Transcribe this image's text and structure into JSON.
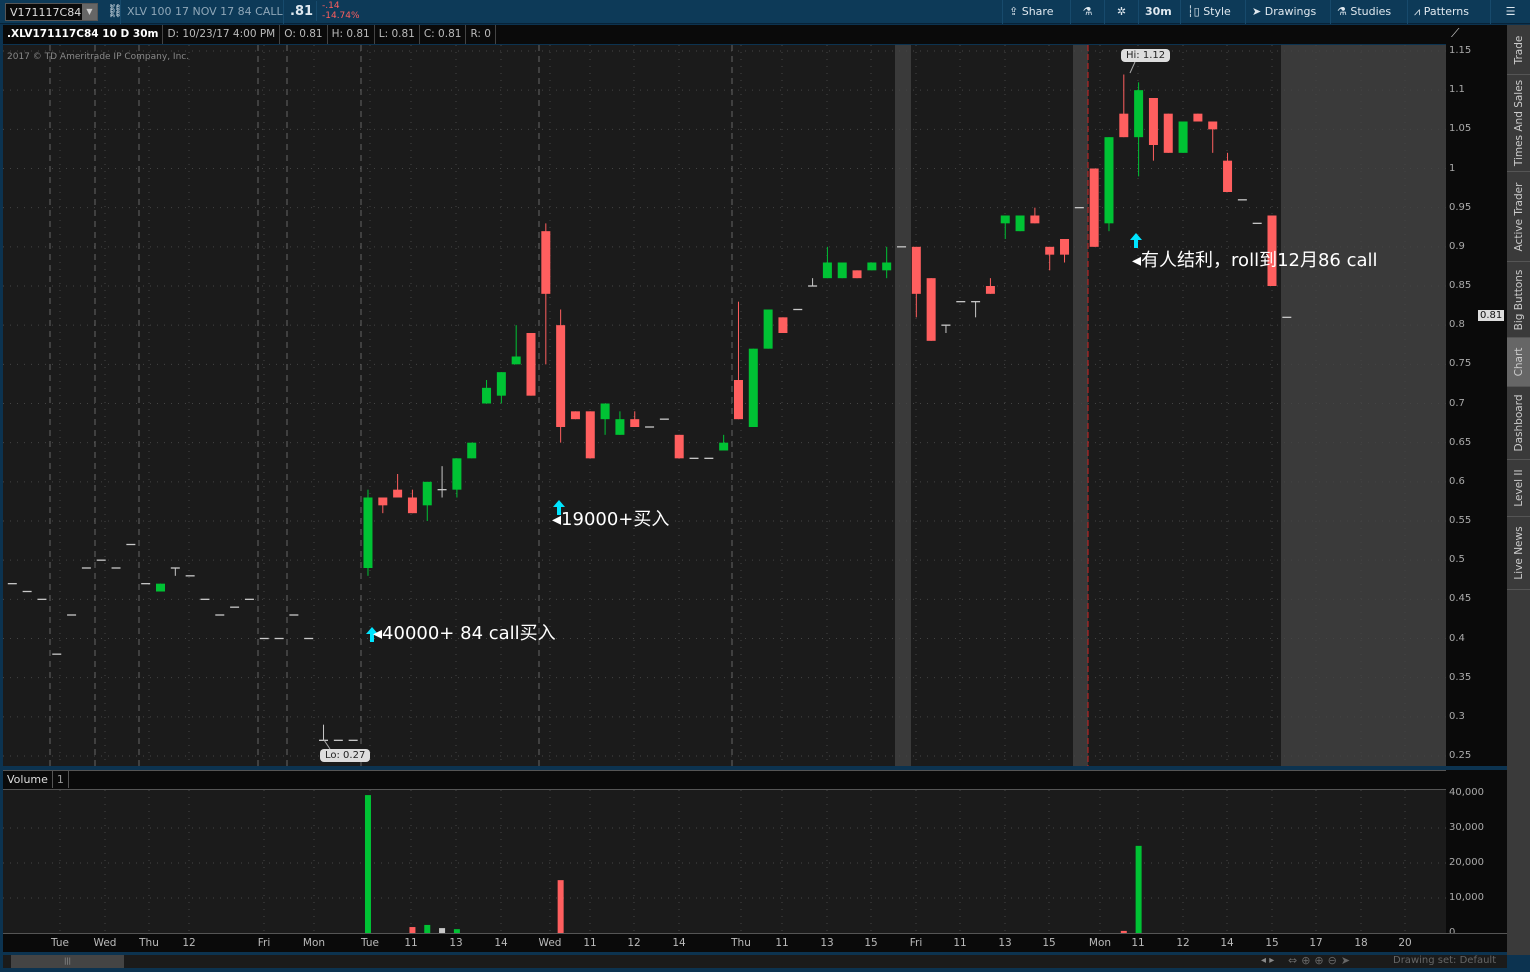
{
  "toolbar": {
    "symbol": "V171117C84",
    "description": "XLV 100 17 NOV 17 84 CALL",
    "last": ".81",
    "change": "-.14",
    "change_pct": "-14.74%",
    "share": "Share",
    "timeframe": "30m",
    "style": "Style",
    "drawings": "Drawings",
    "studies": "Studies",
    "patterns": "Patterns",
    "icons": [
      "link-icon",
      "share-icon",
      "flask-icon",
      "gear-icon",
      "candle-style-icon",
      "cursor-icon",
      "studies-flask-icon",
      "patterns-icon",
      "menu-icon"
    ]
  },
  "infobar": {
    "title": ".XLV171117C84 10 D 30m",
    "date": "D: 10/23/17 4:00 PM",
    "open": "O: 0.81",
    "high": "H: 0.81",
    "low": "L: 0.81",
    "close": "C: 0.81",
    "range": "R: 0"
  },
  "copyright": "2017 © TD Ameritrade IP Company, Inc.",
  "annotations": {
    "a1": "40000+ 84 call买入",
    "a2": "19000+买入",
    "a3": "有人结利，roll到12月86 call",
    "hi": "Hi: 1.12",
    "lo": "Lo: 0.27",
    "current": "0.81"
  },
  "volume": {
    "label": "Volume",
    "index": "1"
  },
  "sidebar": [
    "Trade",
    "Times And Sales",
    "Active Trader",
    "Big Buttons",
    "Chart",
    "Dashboard",
    "Level II",
    "Live News"
  ],
  "sidebar_active": "Chart",
  "statusbar": {
    "drawing_set": "Drawing set: Default"
  },
  "colors": {
    "up": "#00c234",
    "down": "#ff5f5f",
    "neutral": "#c8c8c8",
    "arrow": "#00e5ff",
    "background": "#1b1b1b"
  },
  "chart_data": {
    "type": "candlestick",
    "interval": "30m",
    "price_ticks": [
      "1.15",
      "1.1",
      "1.05",
      "1",
      "0.95",
      "0.9",
      "0.85",
      "0.8",
      "0.75",
      "0.7",
      "0.65",
      "0.6",
      "0.55",
      "0.5",
      "0.45",
      "0.4",
      "0.35",
      "0.3",
      "0.25"
    ],
    "ylim": [
      0.25,
      1.15
    ],
    "volume_ticks": [
      "40,000",
      "30,000",
      "20,000",
      "10,000",
      "0"
    ],
    "volume_ylim": [
      0,
      40000
    ],
    "time_labels": [
      "Tue",
      "Wed",
      "Thu",
      "12",
      "Fri",
      "Mon",
      "Tue",
      "11",
      "13",
      "14",
      "Wed",
      "11",
      "12",
      "14",
      "Thu",
      "11",
      "13",
      "15",
      "Fri",
      "11",
      "13",
      "15",
      "Mon",
      "11",
      "12",
      "14",
      "15",
      "17",
      "18",
      "20"
    ],
    "ohlc": [
      [
        0.47,
        0.47,
        0.47,
        0.47
      ],
      [
        0.46,
        0.46,
        0.46,
        0.46
      ],
      [
        0.45,
        0.45,
        0.45,
        0.45
      ],
      [
        0.38,
        0.38,
        0.38,
        0.38
      ],
      [
        0.43,
        0.43,
        0.43,
        0.43
      ],
      [
        0.49,
        0.49,
        0.49,
        0.49
      ],
      [
        0.5,
        0.5,
        0.5,
        0.5
      ],
      [
        0.49,
        0.49,
        0.49,
        0.49
      ],
      [
        0.52,
        0.52,
        0.52,
        0.52
      ],
      [
        0.47,
        0.47,
        0.47,
        0.47
      ],
      [
        0.46,
        0.47,
        0.46,
        0.47
      ],
      [
        0.49,
        0.49,
        0.48,
        0.49
      ],
      [
        0.48,
        0.48,
        0.48,
        0.48
      ],
      [
        0.45,
        0.45,
        0.45,
        0.45
      ],
      [
        0.43,
        0.43,
        0.43,
        0.43
      ],
      [
        0.44,
        0.44,
        0.44,
        0.44
      ],
      [
        0.45,
        0.45,
        0.45,
        0.45
      ],
      [
        0.4,
        0.4,
        0.4,
        0.4
      ],
      [
        0.4,
        0.4,
        0.4,
        0.4
      ],
      [
        0.43,
        0.43,
        0.43,
        0.43
      ],
      [
        0.4,
        0.4,
        0.4,
        0.4
      ],
      [
        0.27,
        0.29,
        0.27,
        0.27
      ],
      [
        0.27,
        0.27,
        0.27,
        0.27
      ],
      [
        0.27,
        0.27,
        0.27,
        0.27
      ],
      [
        0.49,
        0.59,
        0.48,
        0.58
      ],
      [
        0.58,
        0.58,
        0.56,
        0.57
      ],
      [
        0.59,
        0.61,
        0.58,
        0.58
      ],
      [
        0.58,
        0.59,
        0.56,
        0.56
      ],
      [
        0.57,
        0.6,
        0.55,
        0.6
      ],
      [
        0.59,
        0.62,
        0.58,
        0.59
      ],
      [
        0.59,
        0.63,
        0.58,
        0.63
      ],
      [
        0.63,
        0.65,
        0.63,
        0.65
      ],
      [
        0.7,
        0.73,
        0.7,
        0.72
      ],
      [
        0.71,
        0.74,
        0.7,
        0.74
      ],
      [
        0.75,
        0.8,
        0.75,
        0.76
      ],
      [
        0.79,
        0.79,
        0.71,
        0.71
      ],
      [
        0.92,
        0.93,
        0.75,
        0.84
      ],
      [
        0.8,
        0.82,
        0.65,
        0.67
      ],
      [
        0.69,
        0.69,
        0.68,
        0.68
      ],
      [
        0.69,
        0.69,
        0.63,
        0.63
      ],
      [
        0.68,
        0.7,
        0.66,
        0.7
      ],
      [
        0.66,
        0.69,
        0.66,
        0.68
      ],
      [
        0.68,
        0.69,
        0.67,
        0.67
      ],
      [
        0.67,
        0.67,
        0.67,
        0.67
      ],
      [
        0.68,
        0.68,
        0.68,
        0.68
      ],
      [
        0.66,
        0.66,
        0.63,
        0.63
      ],
      [
        0.63,
        0.63,
        0.63,
        0.63
      ],
      [
        0.63,
        0.63,
        0.63,
        0.63
      ],
      [
        0.64,
        0.66,
        0.64,
        0.65
      ],
      [
        0.73,
        0.83,
        0.68,
        0.68
      ],
      [
        0.67,
        0.77,
        0.67,
        0.77
      ],
      [
        0.77,
        0.82,
        0.77,
        0.82
      ],
      [
        0.81,
        0.81,
        0.79,
        0.79
      ],
      [
        0.82,
        0.82,
        0.82,
        0.82
      ],
      [
        0.85,
        0.86,
        0.85,
        0.85
      ],
      [
        0.86,
        0.9,
        0.86,
        0.88
      ],
      [
        0.86,
        0.88,
        0.86,
        0.88
      ],
      [
        0.87,
        0.87,
        0.86,
        0.86
      ],
      [
        0.87,
        0.88,
        0.87,
        0.88
      ],
      [
        0.87,
        0.9,
        0.86,
        0.88
      ],
      [
        0.9,
        0.9,
        0.9,
        0.9
      ],
      [
        0.9,
        0.9,
        0.81,
        0.84
      ],
      [
        0.86,
        0.86,
        0.78,
        0.78
      ],
      [
        0.8,
        0.8,
        0.79,
        0.8
      ],
      [
        0.83,
        0.83,
        0.83,
        0.83
      ],
      [
        0.83,
        0.83,
        0.81,
        0.83
      ],
      [
        0.85,
        0.86,
        0.84,
        0.84
      ],
      [
        0.93,
        0.94,
        0.91,
        0.94
      ],
      [
        0.92,
        0.94,
        0.92,
        0.94
      ],
      [
        0.94,
        0.95,
        0.93,
        0.93
      ],
      [
        0.9,
        0.9,
        0.87,
        0.89
      ],
      [
        0.91,
        0.91,
        0.88,
        0.89
      ],
      [
        0.95,
        0.95,
        0.95,
        0.95
      ],
      [
        1.0,
        1.0,
        0.9,
        0.9
      ],
      [
        0.93,
        1.04,
        0.92,
        1.04
      ],
      [
        1.07,
        1.12,
        1.04,
        1.04
      ],
      [
        1.04,
        1.11,
        0.99,
        1.1
      ],
      [
        1.09,
        1.09,
        1.01,
        1.03
      ],
      [
        1.07,
        1.07,
        1.02,
        1.02
      ],
      [
        1.02,
        1.06,
        1.02,
        1.06
      ],
      [
        1.07,
        1.07,
        1.06,
        1.06
      ],
      [
        1.06,
        1.06,
        1.02,
        1.05
      ],
      [
        1.01,
        1.02,
        0.97,
        0.97
      ],
      [
        0.96,
        0.96,
        0.96,
        0.96
      ],
      [
        0.93,
        0.93,
        0.93,
        0.93
      ],
      [
        0.94,
        0.94,
        0.85,
        0.85
      ],
      [
        0.81,
        0.81,
        0.81,
        0.81
      ]
    ],
    "volume": {
      "24": 39400,
      "27": 1700,
      "28": 2300,
      "29": 1400,
      "30": 1100,
      "37": 15100,
      "75": 600,
      "76": 24900
    }
  }
}
